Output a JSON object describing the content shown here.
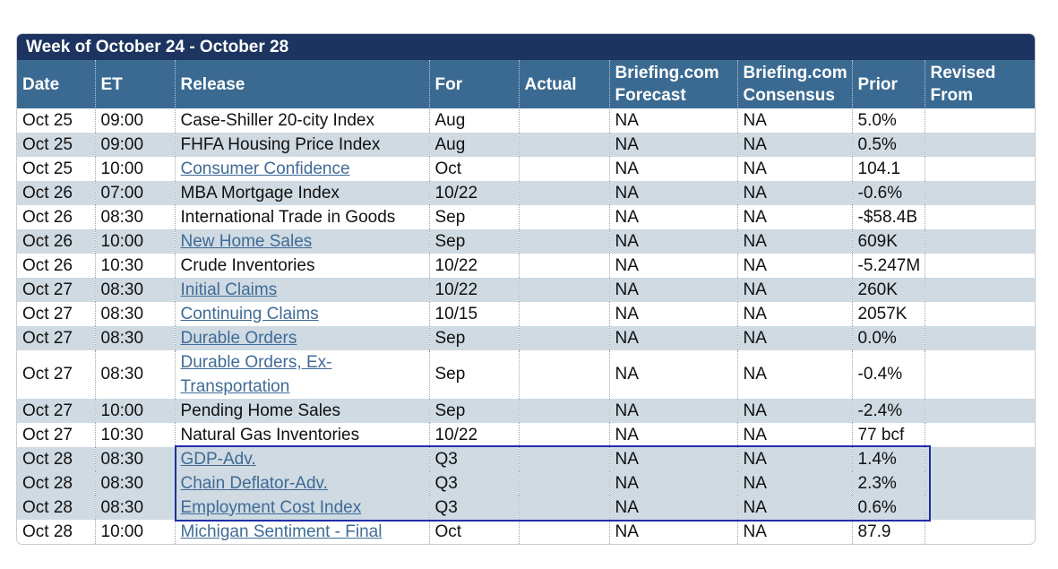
{
  "calendar": {
    "week_title": "Week of October 24 - October 28",
    "columns": {
      "date": "Date",
      "et": "ET",
      "release": "Release",
      "for": "For",
      "actual": "Actual",
      "forecast_line1": "Briefing.com",
      "forecast_line2": "Forecast",
      "consensus_line1": "Briefing.com",
      "consensus_line2": "Consensus",
      "prior": "Prior",
      "revised_line1": "Revised",
      "revised_line2": "From"
    },
    "rows": [
      {
        "date": "Oct 25",
        "et": "09:00",
        "release": "Case-Shiller 20-city Index",
        "for": "Aug",
        "actual": "",
        "forecast": "NA",
        "consensus": "NA",
        "prior": "5.0%",
        "revised": ""
      },
      {
        "date": "Oct 25",
        "et": "09:00",
        "release": "FHFA Housing Price Index",
        "for": "Aug",
        "actual": "",
        "forecast": "NA",
        "consensus": "NA",
        "prior": "0.5%",
        "revised": ""
      },
      {
        "date": "Oct 25",
        "et": "10:00",
        "release": "Consumer Confidence",
        "for": "Oct",
        "actual": "",
        "forecast": "NA",
        "consensus": "NA",
        "prior": "104.1",
        "revised": ""
      },
      {
        "date": "Oct 26",
        "et": "07:00",
        "release": "MBA Mortgage Index",
        "for": "10/22",
        "actual": "",
        "forecast": "NA",
        "consensus": "NA",
        "prior": "-0.6%",
        "revised": ""
      },
      {
        "date": "Oct 26",
        "et": "08:30",
        "release": "International Trade in Goods",
        "for": "Sep",
        "actual": "",
        "forecast": "NA",
        "consensus": "NA",
        "prior": "-$58.4B",
        "revised": ""
      },
      {
        "date": "Oct 26",
        "et": "10:00",
        "release": "New Home Sales",
        "for": "Sep",
        "actual": "",
        "forecast": "NA",
        "consensus": "NA",
        "prior": "609K",
        "revised": ""
      },
      {
        "date": "Oct 26",
        "et": "10:30",
        "release": "Crude Inventories",
        "for": "10/22",
        "actual": "",
        "forecast": "NA",
        "consensus": "NA",
        "prior": "-5.247M",
        "revised": ""
      },
      {
        "date": "Oct 27",
        "et": "08:30",
        "release": "Initial Claims",
        "for": "10/22",
        "actual": "",
        "forecast": "NA",
        "consensus": "NA",
        "prior": "260K",
        "revised": ""
      },
      {
        "date": "Oct 27",
        "et": "08:30",
        "release": "Continuing Claims",
        "for": "10/15",
        "actual": "",
        "forecast": "NA",
        "consensus": "NA",
        "prior": "2057K",
        "revised": ""
      },
      {
        "date": "Oct 27",
        "et": "08:30",
        "release": "Durable Orders",
        "for": "Sep",
        "actual": "",
        "forecast": "NA",
        "consensus": "NA",
        "prior": "0.0%",
        "revised": ""
      },
      {
        "date": "Oct 27",
        "et": "08:30",
        "release": "Durable Orders, Ex-Transportation",
        "for": "Sep",
        "actual": "",
        "forecast": "NA",
        "consensus": "NA",
        "prior": "-0.4%",
        "revised": ""
      },
      {
        "date": "Oct 27",
        "et": "10:00",
        "release": "Pending Home Sales",
        "for": "Sep",
        "actual": "",
        "forecast": "NA",
        "consensus": "NA",
        "prior": "-2.4%",
        "revised": ""
      },
      {
        "date": "Oct 27",
        "et": "10:30",
        "release": "Natural Gas Inventories",
        "for": "10/22",
        "actual": "",
        "forecast": "NA",
        "consensus": "NA",
        "prior": "77 bcf",
        "revised": ""
      },
      {
        "date": "Oct 28",
        "et": "08:30",
        "release": "GDP-Adv.",
        "for": "Q3",
        "actual": "",
        "forecast": "NA",
        "consensus": "NA",
        "prior": "1.4%",
        "revised": ""
      },
      {
        "date": "Oct 28",
        "et": "08:30",
        "release": "Chain Deflator-Adv.",
        "for": "Q3",
        "actual": "",
        "forecast": "NA",
        "consensus": "NA",
        "prior": "2.3%",
        "revised": ""
      },
      {
        "date": "Oct 28",
        "et": "08:30",
        "release": "Employment Cost Index",
        "for": "Q3",
        "actual": "",
        "forecast": "NA",
        "consensus": "NA",
        "prior": "0.6%",
        "revised": ""
      },
      {
        "date": "Oct 28",
        "et": "10:00",
        "release": "Michigan Sentiment - Final",
        "for": "Oct",
        "actual": "",
        "forecast": "NA",
        "consensus": "NA",
        "prior": "87.9",
        "revised": ""
      }
    ]
  },
  "colors": {
    "title_bar": "#1c345f",
    "header_bg": "#3a6a91",
    "row_shade": "#cfdae2",
    "link": "#3f6b97",
    "highlight_border": "#1f2ea8"
  }
}
